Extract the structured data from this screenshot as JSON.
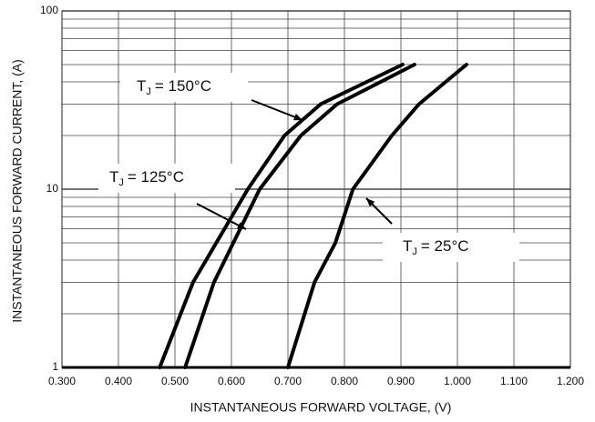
{
  "chart_data": {
    "type": "line",
    "x_label": "INSTANTANEOUS FORWARD VOLTAGE, (V)",
    "y_label": "INSTANTANEOUS FORWARD CURRENT, (A)",
    "xlim": [
      0.3,
      1.2
    ],
    "ylim": [
      1,
      100
    ],
    "y_log": true,
    "grid": true,
    "xticks": [
      {
        "value": 0.3,
        "label": "0.300"
      },
      {
        "value": 0.4,
        "label": "0.400"
      },
      {
        "value": 0.5,
        "label": "0.500"
      },
      {
        "value": 0.6,
        "label": "0.600"
      },
      {
        "value": 0.7,
        "label": "0.700"
      },
      {
        "value": 0.8,
        "label": "0.800"
      },
      {
        "value": 0.9,
        "label": "0.900"
      },
      {
        "value": 1.0,
        "label": "1.000"
      },
      {
        "value": 1.1,
        "label": "1.100"
      },
      {
        "value": 1.2,
        "label": "1.200"
      }
    ],
    "yticks": [
      1,
      10,
      100
    ],
    "y_minor_ticks": [
      2,
      3,
      4,
      5,
      6,
      7,
      8,
      9,
      20,
      30,
      40,
      50,
      60,
      70,
      80,
      90
    ],
    "series": [
      {
        "color": "#000000",
        "x": [
          0.473,
          0.532,
          0.629,
          0.694,
          0.758,
          0.903
        ],
        "values": [
          1,
          3,
          10,
          20,
          30,
          50
        ]
      },
      {
        "color": "#000000",
        "x": [
          0.518,
          0.569,
          0.65,
          0.723,
          0.787,
          0.924
        ],
        "values": [
          1,
          3,
          10,
          20,
          30,
          50
        ]
      },
      {
        "color": "#000000",
        "x": [
          0.7,
          0.747,
          0.784,
          0.815,
          0.884,
          0.932,
          1.016
        ],
        "values": [
          1,
          3,
          5,
          10,
          20,
          30,
          50
        ]
      }
    ],
    "annotations": [
      {
        "symbol": "T",
        "subscript": "J",
        "text": "= 150°C"
      },
      {
        "symbol": "T",
        "subscript": "J",
        "text": "= 125°C"
      },
      {
        "symbol": "T",
        "subscript": "J",
        "text": "= 25°C"
      }
    ]
  }
}
